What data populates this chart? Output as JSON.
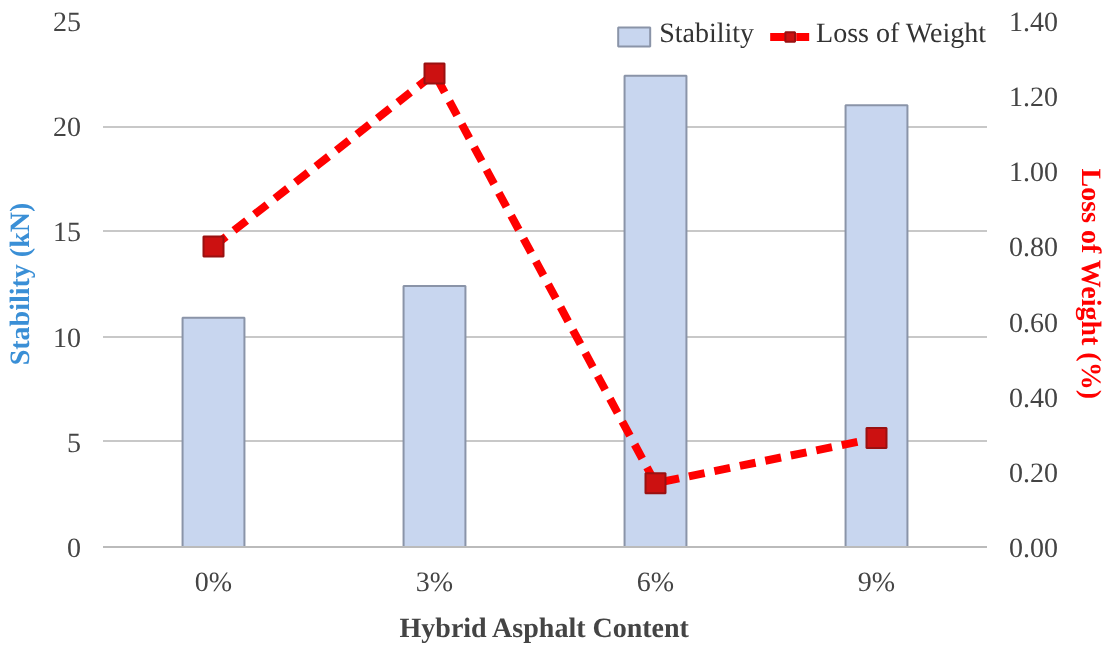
{
  "chart_data": {
    "type": "bar",
    "xlabel": "Hybrid Asphalt Content",
    "ylabel": "Stability (kN)",
    "y2label": "Loss of Weight (%)",
    "categories": [
      "0%",
      "3%",
      "6%",
      "9%"
    ],
    "series": [
      {
        "name": "Stability",
        "color": "#c8d6ef",
        "values": [
          10.9,
          12.4,
          22.4,
          21.0
        ]
      },
      {
        "name": "Loss of Weight",
        "type": "line",
        "axis": "y2",
        "color": "#ff0000",
        "values": [
          0.8,
          1.26,
          0.17,
          0.29
        ],
        "marker": "square",
        "line_style": "dashed"
      }
    ],
    "ylim": [
      0,
      25
    ],
    "yticks": [
      0,
      5,
      10,
      15,
      20,
      25
    ],
    "y2lim": [
      0,
      1.4
    ],
    "y2ticks": [
      {
        "value": 0,
        "label": "0.00"
      },
      {
        "value": 0.2,
        "label": "0.20"
      },
      {
        "value": 0.4,
        "label": "0.40"
      },
      {
        "value": 0.6,
        "label": "0.60"
      },
      {
        "value": 0.8,
        "label": "0.80"
      },
      {
        "value": 1.0,
        "label": "1.00"
      },
      {
        "value": 1.2,
        "label": "1.20"
      },
      {
        "value": 1.4,
        "label": "1.40"
      }
    ],
    "grid": "y",
    "legend": "top right"
  }
}
